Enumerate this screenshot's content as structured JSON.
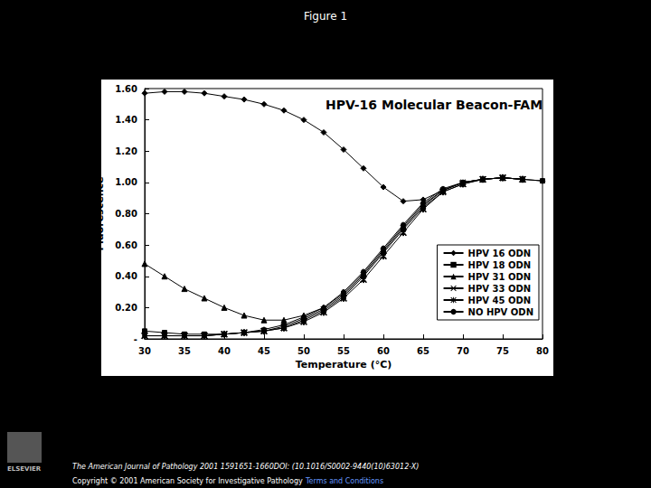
{
  "page": {
    "heading": "Figure 1",
    "footer_line1": "The American Journal of Pathology 2001 1591651-1660DOI: (10.1016/S0002-9440(10)63012-X)",
    "footer_line2": "Copyright © 2001 American Society for Investigative Pathology",
    "footer_link": "Terms and Conditions",
    "logo_text": "ELSEVIER"
  },
  "chart_data": {
    "type": "line",
    "title": "HPV-16 Molecular Beacon-FAM",
    "x_label": "Temperature (°C)",
    "y_label": "Fluorescence",
    "x": [
      30,
      32.5,
      35,
      37.5,
      40,
      42.5,
      45,
      47.5,
      50,
      52.5,
      55,
      57.5,
      60,
      62.5,
      65,
      67.5,
      70,
      72.5,
      75,
      77.5,
      80
    ],
    "series": [
      {
        "name": "HPV 16 ODN",
        "color": "#000000",
        "marker": "diamond",
        "line_style": "solid",
        "values": [
          1.57,
          1.58,
          1.58,
          1.57,
          1.55,
          1.53,
          1.5,
          1.46,
          1.4,
          1.32,
          1.21,
          1.09,
          0.97,
          0.88,
          0.89,
          0.95,
          1.0,
          1.02,
          1.03,
          1.02,
          1.01
        ]
      },
      {
        "name": "HPV 18 ODN",
        "color": "#000000",
        "marker": "square",
        "line_style": "solid",
        "values": [
          0.05,
          0.04,
          0.03,
          0.03,
          0.03,
          0.04,
          0.05,
          0.07,
          0.12,
          0.18,
          0.27,
          0.4,
          0.55,
          0.7,
          0.84,
          0.94,
          0.99,
          1.02,
          1.03,
          1.02,
          1.01
        ]
      },
      {
        "name": "HPV 31 ODN",
        "color": "#000000",
        "marker": "triangle",
        "line_style": "solid",
        "values": [
          0.48,
          0.4,
          0.32,
          0.26,
          0.2,
          0.15,
          0.12,
          0.12,
          0.15,
          0.2,
          0.29,
          0.42,
          0.57,
          0.72,
          0.86,
          0.95,
          1.0,
          1.02,
          1.03,
          1.02,
          null
        ]
      },
      {
        "name": "HPV 33 ODN",
        "color": "#000000",
        "marker": "x",
        "line_style": "solid",
        "values": [
          0.02,
          0.02,
          0.02,
          0.02,
          0.03,
          0.04,
          0.05,
          0.08,
          0.13,
          0.19,
          0.28,
          0.41,
          0.56,
          0.71,
          0.85,
          0.95,
          1.0,
          1.02,
          1.03,
          1.02,
          null
        ]
      },
      {
        "name": "HPV 45 ODN",
        "color": "#000000",
        "marker": "asterisk",
        "line_style": "solid",
        "values": [
          0.02,
          0.02,
          0.02,
          0.02,
          0.03,
          0.04,
          0.05,
          0.07,
          0.11,
          0.17,
          0.26,
          0.38,
          0.53,
          0.68,
          0.83,
          0.94,
          0.99,
          1.02,
          1.03,
          1.02,
          null
        ]
      },
      {
        "name": "NO HPV ODN",
        "color": "#000000",
        "marker": "circle",
        "line_style": "solid",
        "values": [
          0.02,
          0.02,
          0.02,
          0.02,
          0.03,
          0.04,
          0.06,
          0.09,
          0.14,
          0.2,
          0.3,
          0.43,
          0.58,
          0.73,
          0.87,
          0.96,
          1.0,
          1.02,
          1.03,
          1.02,
          null
        ]
      }
    ],
    "xlim": [
      30,
      80
    ],
    "xticks": [
      30,
      35,
      40,
      45,
      50,
      55,
      60,
      65,
      70,
      75,
      80
    ],
    "ylim": [
      0,
      1.6
    ],
    "yticks": [
      {
        "value": 0,
        "label": "-"
      },
      {
        "value": 0.2,
        "label": "0.20"
      },
      {
        "value": 0.4,
        "label": "0.40"
      },
      {
        "value": 0.6,
        "label": "0.60"
      },
      {
        "value": 0.8,
        "label": "0.80"
      },
      {
        "value": 1.0,
        "label": "1.00"
      },
      {
        "value": 1.2,
        "label": "1.20"
      },
      {
        "value": 1.4,
        "label": "1.40"
      },
      {
        "value": 1.6,
        "label": "1.60"
      }
    ],
    "grid": false,
    "legend": "lower right"
  }
}
